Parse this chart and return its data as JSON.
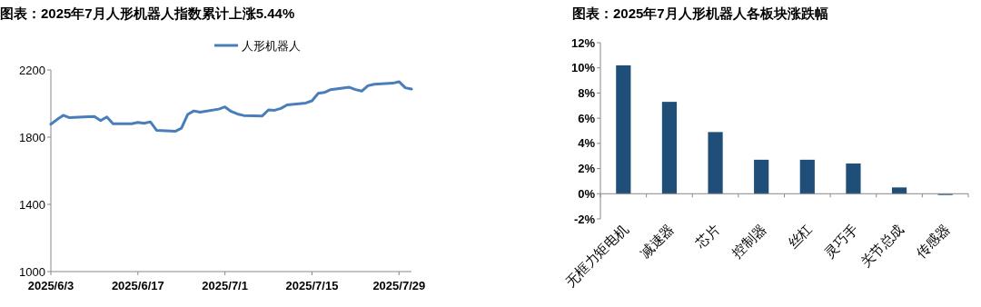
{
  "chart_data": [
    {
      "type": "line",
      "title": "图表：2025年7月人形机器人指数累计上涨5.44%",
      "legend": "top",
      "marker": "none",
      "line_style": "solid",
      "x": [
        "2025-06-03",
        "2025-06-04",
        "2025-06-05",
        "2025-06-06",
        "2025-06-09",
        "2025-06-10",
        "2025-06-11",
        "2025-06-12",
        "2025-06-13",
        "2025-06-16",
        "2025-06-17",
        "2025-06-18",
        "2025-06-19",
        "2025-06-20",
        "2025-06-23",
        "2025-06-24",
        "2025-06-25",
        "2025-06-26",
        "2025-06-27",
        "2025-06-30",
        "2025-07-01",
        "2025-07-02",
        "2025-07-03",
        "2025-07-04",
        "2025-07-07",
        "2025-07-08",
        "2025-07-09",
        "2025-07-10",
        "2025-07-11",
        "2025-07-14",
        "2025-07-15",
        "2025-07-16",
        "2025-07-17",
        "2025-07-18",
        "2025-07-21",
        "2025-07-22",
        "2025-07-23",
        "2025-07-24",
        "2025-07-25",
        "2025-07-28",
        "2025-07-29",
        "2025-07-30",
        "2025-07-31"
      ],
      "series": [
        {
          "name": "人形机器人",
          "color": "#4a7ebb",
          "values": [
            1877,
            1905,
            1930,
            1916,
            1922,
            1923,
            1899,
            1920,
            1880,
            1880,
            1888,
            1882,
            1891,
            1841,
            1835,
            1853,
            1935,
            1956,
            1949,
            1967,
            1980,
            1953,
            1938,
            1929,
            1926,
            1962,
            1960,
            1971,
            1992,
            2003,
            2016,
            2061,
            2066,
            2083,
            2097,
            2083,
            2074,
            2106,
            2115,
            2121,
            2130,
            2094,
            2086
          ]
        }
      ],
      "xlim": [
        "2025-06-03",
        "2025-07-31"
      ],
      "xticks": [
        {
          "value": "2025-06-03",
          "label": "2025/6/3"
        },
        {
          "value": "2025-06-17",
          "label": "2025/6/17"
        },
        {
          "value": "2025-07-01",
          "label": "2025/7/1"
        },
        {
          "value": "2025-07-15",
          "label": "2025/7/15"
        },
        {
          "value": "2025-07-29",
          "label": "2025/7/29"
        }
      ],
      "ylim": [
        1000,
        2200
      ],
      "yticks": [
        1000,
        1400,
        1800,
        2200
      ]
    },
    {
      "type": "bar",
      "title": "图表：2025年7月人形机器人各板块涨跌幅",
      "categories": [
        "无框力矩电机",
        "减速器",
        "芯片",
        "控制器",
        "丝杠",
        "灵巧手",
        "关节总成",
        "传感器"
      ],
      "values": [
        10.2,
        7.3,
        4.9,
        2.7,
        2.7,
        2.4,
        0.5,
        -0.1
      ],
      "color": "#1f4e79",
      "ylim": [
        -2,
        12
      ],
      "yticks": [
        {
          "value": -2,
          "label": "-2%"
        },
        {
          "value": 0,
          "label": "0%"
        },
        {
          "value": 2,
          "label": "2%"
        },
        {
          "value": 4,
          "label": "4%"
        },
        {
          "value": 6,
          "label": "6%"
        },
        {
          "value": 8,
          "label": "8%"
        },
        {
          "value": 10,
          "label": "10%"
        },
        {
          "value": 12,
          "label": "12%"
        }
      ]
    }
  ]
}
